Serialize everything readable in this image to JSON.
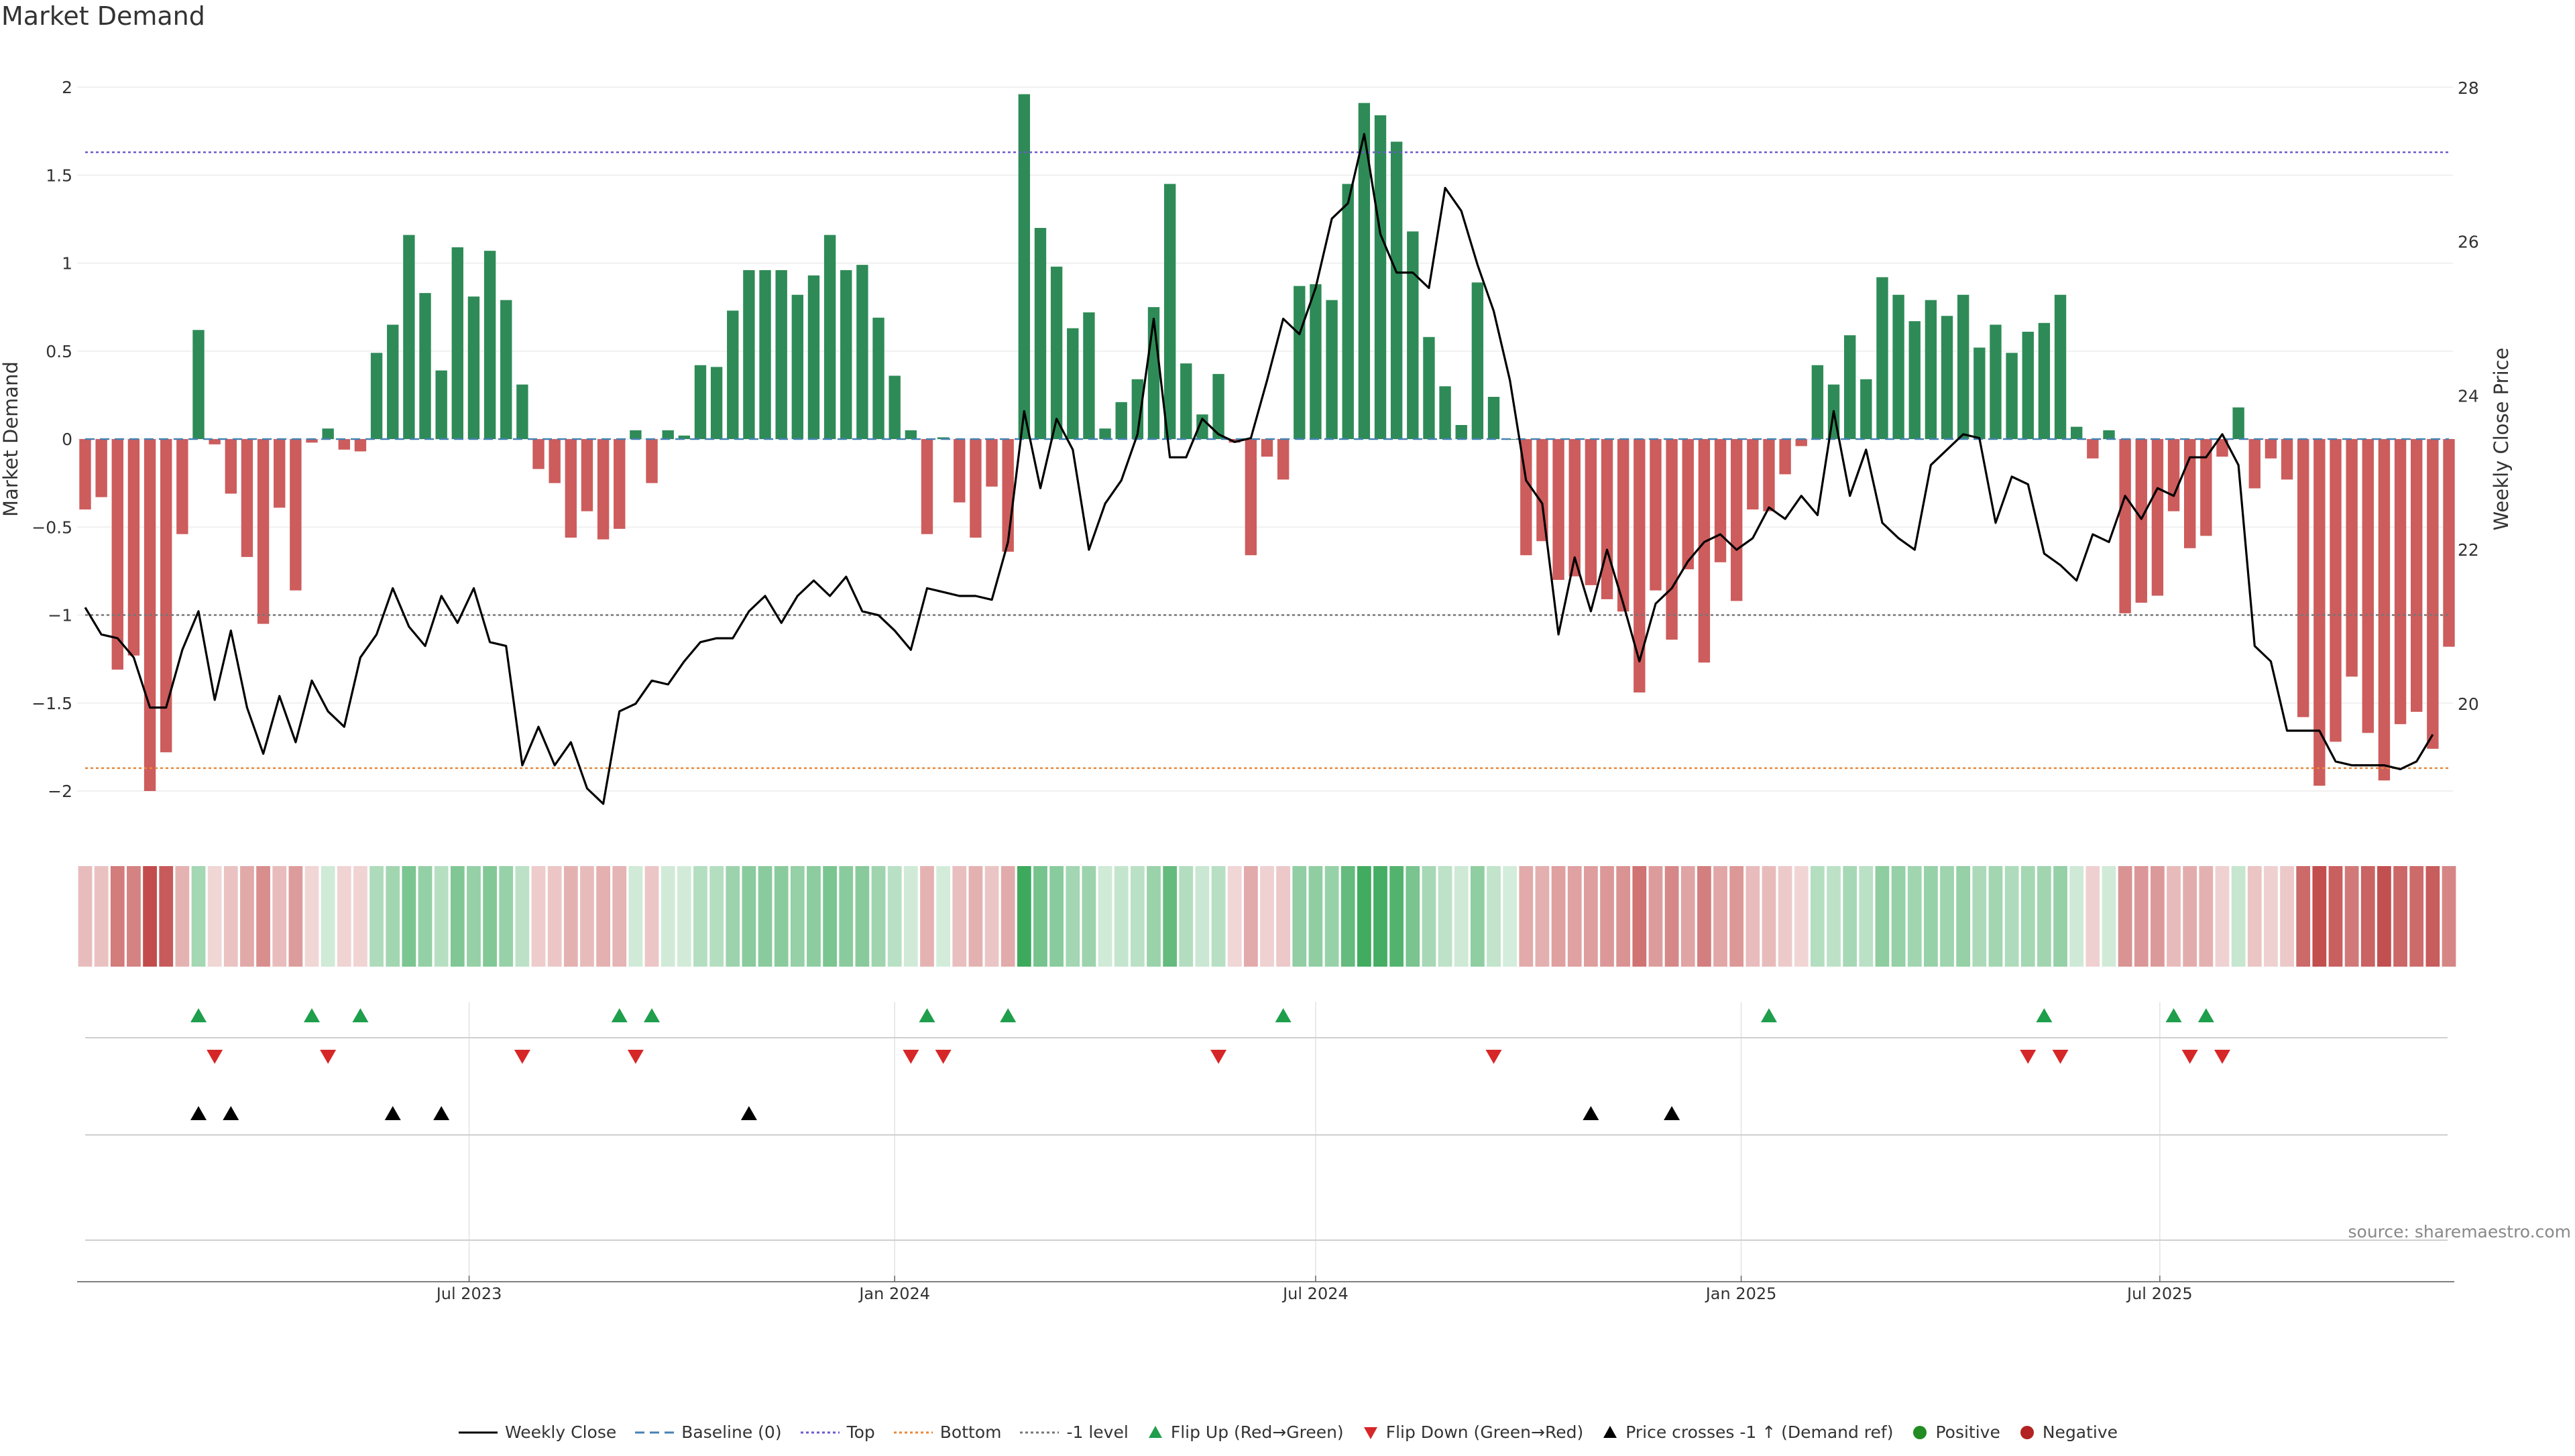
{
  "title": "Market Demand",
  "source": "source: sharemaestro.com",
  "colors": {
    "green": "#2e8b57",
    "red": "#cd5c5c",
    "price": "#000000",
    "top": "#6a5acd",
    "bottom": "#e8883a",
    "minus_one": "#777777",
    "baseline": "#4682b4",
    "flip_up": "#1f9e4c",
    "flip_down": "#d62728"
  },
  "legend": [
    {
      "label": "Weekly Close",
      "kind": "line",
      "color": "#000000",
      "dash": ""
    },
    {
      "label": "Baseline (0)",
      "kind": "line",
      "color": "#4682b4",
      "dash": "14,8"
    },
    {
      "label": "Top",
      "kind": "line",
      "color": "#6a5acd",
      "dash": "4,4"
    },
    {
      "label": "Bottom",
      "kind": "line",
      "color": "#e8883a",
      "dash": "4,4"
    },
    {
      "label": "-1 level",
      "kind": "line",
      "color": "#777777",
      "dash": "4,4"
    },
    {
      "label": "Flip Up (Red→Green)",
      "kind": "tri-up",
      "color": "#1f9e4c"
    },
    {
      "label": "Flip Down (Green→Red)",
      "kind": "tri-down",
      "color": "#d62728"
    },
    {
      "label": "Price crosses -1 ↑ (Demand ref)",
      "kind": "tri-up",
      "color": "#000000"
    },
    {
      "label": "Positive",
      "kind": "dot",
      "color": "#228b22"
    },
    {
      "label": "Negative",
      "kind": "dot",
      "color": "#b22222"
    }
  ],
  "chart_data": {
    "type": "bar",
    "title": "Market Demand",
    "ylabel": "Market Demand",
    "y2label": "Weekly Close Price",
    "ylim": [
      -2.2,
      2.2
    ],
    "y2lim": [
      18.3,
      28.2
    ],
    "yticks": [
      "2",
      "1.5",
      "1",
      "0.5",
      "0",
      "−0.5",
      "−1",
      "−1.5",
      "−2"
    ],
    "y2ticks": [
      "28",
      "26",
      "24",
      "22",
      "20"
    ],
    "xticks": [
      "Jul 2023",
      "Jan 2024",
      "Jul 2024",
      "Jan 2025",
      "Jul 2025"
    ],
    "reference_lines": {
      "top": 1.63,
      "bottom": -1.87,
      "minus_one": -1.0,
      "baseline": 0
    },
    "series": [
      {
        "name": "Market Demand",
        "values": [
          -0.4,
          -0.33,
          -1.31,
          -1.23,
          -2.0,
          -1.78,
          -0.54,
          0.62,
          -0.03,
          -0.31,
          -0.67,
          -1.05,
          -0.39,
          -0.86,
          -0.02,
          0.06,
          -0.06,
          -0.07,
          0.49,
          0.65,
          1.16,
          0.83,
          0.39,
          1.09,
          0.81,
          1.07,
          0.79,
          0.31,
          -0.17,
          -0.25,
          -0.56,
          -0.41,
          -0.57,
          -0.51,
          0.05,
          -0.25,
          0.05,
          0.02,
          0.42,
          0.41,
          0.73,
          0.96,
          0.96,
          0.96,
          0.82,
          0.93,
          1.16,
          0.96,
          0.99,
          0.69,
          0.36,
          0.05,
          -0.54,
          0.01,
          -0.36,
          -0.56,
          -0.27,
          -0.64,
          1.96,
          1.2,
          0.98,
          0.63,
          0.72,
          0.06,
          0.21,
          0.34,
          0.75,
          1.45,
          0.43,
          0.14,
          0.37,
          -0.02,
          -0.66,
          -0.1,
          -0.23,
          0.87,
          0.88,
          0.79,
          1.45,
          1.91,
          1.84,
          1.69,
          1.18,
          0.58,
          0.3,
          0.08,
          0.89,
          0.24,
          0.0,
          -0.66,
          -0.58,
          -0.8,
          -0.78,
          -0.83,
          -0.91,
          -0.98,
          -1.44,
          -0.86,
          -1.14,
          -0.74,
          -1.27,
          -0.7,
          -0.92,
          -0.4,
          -0.41,
          -0.2,
          -0.04,
          0.42,
          0.31,
          0.59,
          0.34,
          0.92,
          0.82,
          0.67,
          0.79,
          0.7,
          0.82,
          0.52,
          0.65,
          0.49,
          0.61,
          0.66,
          0.82,
          0.07,
          -0.11,
          0.05,
          -0.99,
          -0.93,
          -0.89,
          -0.41,
          -0.62,
          -0.55,
          -0.1,
          0.18,
          -0.28,
          -0.11,
          -0.23,
          -1.58,
          -1.97,
          -1.72,
          -1.35,
          -1.67,
          -1.94,
          -1.62,
          -1.55,
          -1.76,
          -1.18
        ]
      },
      {
        "name": "Weekly Close",
        "values": [
          21.25,
          20.9,
          20.85,
          20.6,
          19.95,
          19.95,
          20.7,
          21.2,
          20.05,
          20.95,
          19.95,
          19.35,
          20.1,
          19.5,
          20.3,
          19.9,
          19.7,
          20.6,
          20.9,
          21.5,
          21.0,
          20.75,
          21.4,
          21.05,
          21.5,
          20.8,
          20.75,
          19.2,
          19.7,
          19.2,
          19.5,
          18.9,
          18.7,
          19.9,
          20.0,
          20.3,
          20.25,
          20.55,
          20.8,
          20.85,
          20.85,
          21.2,
          21.4,
          21.05,
          21.4,
          21.6,
          21.4,
          21.65,
          21.2,
          21.15,
          20.95,
          20.7,
          21.5,
          21.45,
          21.4,
          21.4,
          21.35,
          22.1,
          23.8,
          22.8,
          23.7,
          23.3,
          22.0,
          22.6,
          22.9,
          23.5,
          25.0,
          23.2,
          23.2,
          23.7,
          23.5,
          23.4,
          23.45,
          24.2,
          25.0,
          24.8,
          25.4,
          26.3,
          26.5,
          27.4,
          26.1,
          25.6,
          25.6,
          25.4,
          26.7,
          26.4,
          25.7,
          25.1,
          24.2,
          22.9,
          22.6,
          20.9,
          21.9,
          21.2,
          22.0,
          21.3,
          20.55,
          21.3,
          21.5,
          21.85,
          22.1,
          22.2,
          22.0,
          22.15,
          22.55,
          22.4,
          22.7,
          22.45,
          23.8,
          22.7,
          23.3,
          22.35,
          22.15,
          22.0,
          23.1,
          23.3,
          23.5,
          23.45,
          22.35,
          22.95,
          22.85,
          21.95,
          21.8,
          21.6,
          22.2,
          22.1,
          22.7,
          22.4,
          22.8,
          22.7,
          23.2,
          23.2,
          23.5,
          23.1,
          20.75,
          20.55,
          19.65,
          19.65,
          19.65,
          19.25,
          19.2,
          19.2,
          19.2,
          19.15,
          19.25,
          19.6
        ]
      }
    ],
    "flip_up_idx": [
      7,
      14,
      17,
      33,
      35,
      52,
      57,
      74,
      104,
      121,
      129,
      131
    ],
    "flip_down_idx": [
      8,
      15,
      27,
      34,
      51,
      53,
      70,
      87,
      120,
      122,
      130,
      132
    ],
    "price_cross_idx": [
      7,
      9,
      19,
      22,
      41,
      93,
      98
    ],
    "week_dates_start": "2023-01-16",
    "xtick_dates": [
      "2023-07-01",
      "2024-01-01",
      "2024-07-01",
      "2025-01-01",
      "2025-07-01"
    ]
  }
}
